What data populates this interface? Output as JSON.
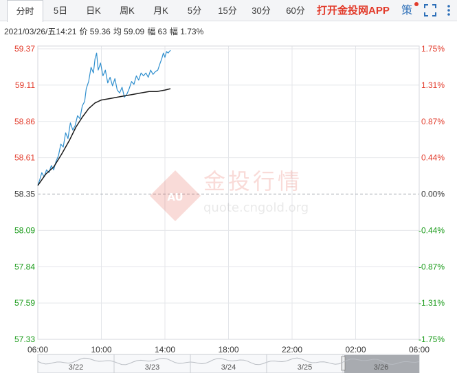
{
  "tabs": [
    {
      "label": "分时",
      "active": true
    },
    {
      "label": "5日",
      "active": false
    },
    {
      "label": "日K",
      "active": false
    },
    {
      "label": "周K",
      "active": false
    },
    {
      "label": "月K",
      "active": false
    },
    {
      "label": "5分",
      "active": false
    },
    {
      "label": "15分",
      "active": false
    },
    {
      "label": "30分",
      "active": false
    },
    {
      "label": "60分",
      "active": false
    }
  ],
  "promo_label": "打开金投网APP",
  "strategy_label": "策",
  "info": {
    "datetime": "2021/03/26/五14:21",
    "price": "价 59.36",
    "avg": "均 59.09",
    "change": "幅 63",
    "pct": "幅 1.73%"
  },
  "watermark": {
    "name": "金投行情",
    "url": "quote.cngold.org",
    "badge": "AU"
  },
  "colors": {
    "up": "#e23b2b",
    "down": "#1a9b1a",
    "price_line": "#2f8fce",
    "avg_line": "#1a1a1a"
  },
  "chart_data": {
    "type": "line",
    "title": "",
    "xlabel": "",
    "ylabel": "",
    "ylim": [
      57.33,
      59.37
    ],
    "pct_ylim": [
      -1.75,
      1.75
    ],
    "base_price": 58.35,
    "y_ticks": [
      "59.37",
      "59.11",
      "58.86",
      "58.61",
      "58.35",
      "58.09",
      "57.84",
      "57.59",
      "57.33"
    ],
    "pct_ticks": [
      "1.75%",
      "1.31%",
      "0.87%",
      "0.44%",
      "0.00%",
      "-0.44%",
      "-0.87%",
      "-1.31%",
      "-1.75%"
    ],
    "x_ticks": [
      "06:00",
      "10:00",
      "14:00",
      "18:00",
      "22:00",
      "02:00",
      "06:00"
    ],
    "x_range_hours": [
      6,
      30
    ],
    "grid": true,
    "series": [
      {
        "key": "price",
        "points": [
          [
            6.0,
            58.41
          ],
          [
            6.12,
            58.45
          ],
          [
            6.25,
            58.5
          ],
          [
            6.4,
            58.47
          ],
          [
            6.55,
            58.52
          ],
          [
            6.7,
            58.5
          ],
          [
            6.85,
            58.55
          ],
          [
            7.0,
            58.52
          ],
          [
            7.15,
            58.58
          ],
          [
            7.3,
            58.62
          ],
          [
            7.45,
            58.7
          ],
          [
            7.6,
            58.68
          ],
          [
            7.75,
            58.78
          ],
          [
            7.9,
            58.74
          ],
          [
            8.05,
            58.85
          ],
          [
            8.2,
            58.8
          ],
          [
            8.35,
            58.83
          ],
          [
            8.5,
            58.9
          ],
          [
            8.65,
            58.88
          ],
          [
            8.8,
            58.97
          ],
          [
            8.95,
            59.0
          ],
          [
            9.05,
            59.09
          ],
          [
            9.2,
            59.14
          ],
          [
            9.35,
            59.24
          ],
          [
            9.5,
            59.2
          ],
          [
            9.6,
            59.3
          ],
          [
            9.7,
            59.34
          ],
          [
            9.8,
            59.22
          ],
          [
            9.95,
            59.27
          ],
          [
            10.1,
            59.18
          ],
          [
            10.25,
            59.22
          ],
          [
            10.4,
            59.13
          ],
          [
            10.55,
            59.17
          ],
          [
            10.7,
            59.11
          ],
          [
            10.85,
            59.16
          ],
          [
            11.0,
            59.08
          ],
          [
            11.15,
            59.06
          ],
          [
            11.3,
            59.1
          ],
          [
            11.45,
            59.03
          ],
          [
            11.6,
            59.05
          ],
          [
            11.75,
            59.09
          ],
          [
            11.9,
            59.14
          ],
          [
            12.05,
            59.12
          ],
          [
            12.2,
            59.18
          ],
          [
            12.35,
            59.15
          ],
          [
            12.5,
            59.2
          ],
          [
            12.65,
            59.18
          ],
          [
            12.8,
            59.2
          ],
          [
            12.95,
            59.17
          ],
          [
            13.1,
            59.22
          ],
          [
            13.25,
            59.19
          ],
          [
            13.4,
            59.21
          ],
          [
            13.55,
            59.22
          ],
          [
            13.7,
            59.27
          ],
          [
            13.8,
            59.3
          ],
          [
            13.9,
            59.34
          ],
          [
            14.0,
            59.31
          ],
          [
            14.1,
            59.35
          ],
          [
            14.2,
            59.34
          ],
          [
            14.35,
            59.36
          ]
        ]
      },
      {
        "key": "avg",
        "points": [
          [
            6.0,
            58.41
          ],
          [
            6.5,
            58.49
          ],
          [
            7.0,
            58.54
          ],
          [
            7.5,
            58.63
          ],
          [
            8.0,
            58.73
          ],
          [
            8.4,
            58.82
          ],
          [
            8.8,
            58.89
          ],
          [
            9.2,
            58.95
          ],
          [
            9.6,
            58.99
          ],
          [
            10.0,
            59.01
          ],
          [
            10.5,
            59.02
          ],
          [
            11.0,
            59.03
          ],
          [
            11.5,
            59.04
          ],
          [
            12.0,
            59.05
          ],
          [
            12.5,
            59.06
          ],
          [
            13.0,
            59.07
          ],
          [
            13.5,
            59.07
          ],
          [
            14.0,
            59.08
          ],
          [
            14.35,
            59.09
          ]
        ]
      }
    ],
    "navigator": {
      "date_labels": [
        "3/22",
        "3/23",
        "3/24",
        "3/25",
        "3/26"
      ]
    }
  }
}
